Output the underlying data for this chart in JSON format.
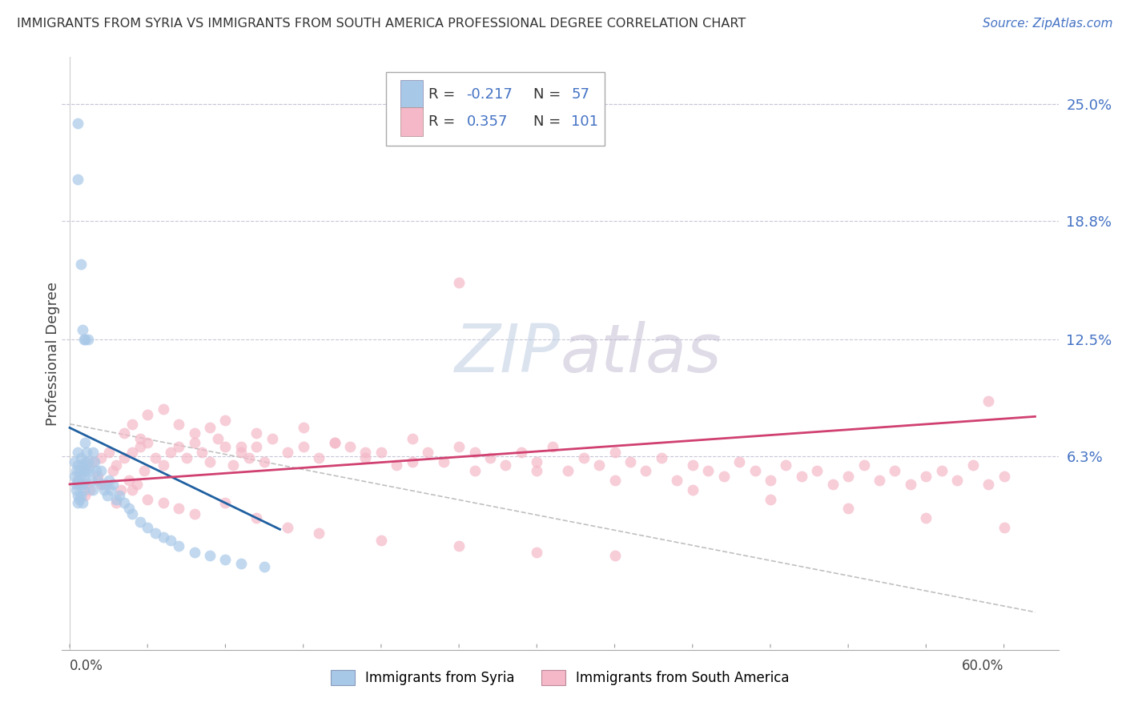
{
  "title": "IMMIGRANTS FROM SYRIA VS IMMIGRANTS FROM SOUTH AMERICA PROFESSIONAL DEGREE CORRELATION CHART",
  "source": "Source: ZipAtlas.com",
  "ylabel": "Professional Degree",
  "ytick_positions": [
    0.063,
    0.125,
    0.188,
    0.25
  ],
  "ytick_labels": [
    "6.3%",
    "12.5%",
    "18.8%",
    "25.0%"
  ],
  "xlim": [
    -0.005,
    0.635
  ],
  "ylim": [
    -0.04,
    0.275
  ],
  "color_syria": "#a8c8e8",
  "color_south_america": "#f4b8c8",
  "color_blue": "#4472c4",
  "color_pink": "#e8527a",
  "color_line_syria": "#2060a0",
  "color_line_sa": "#d04070",
  "background_color": "#ffffff",
  "grid_color": "#c8c8d8",
  "watermark_color": "#d0d8e8",
  "syria_x": [
    0.003,
    0.003,
    0.004,
    0.004,
    0.004,
    0.005,
    0.005,
    0.005,
    0.005,
    0.005,
    0.006,
    0.006,
    0.006,
    0.007,
    0.007,
    0.007,
    0.008,
    0.008,
    0.008,
    0.009,
    0.009,
    0.01,
    0.01,
    0.01,
    0.011,
    0.011,
    0.012,
    0.013,
    0.014,
    0.015,
    0.015,
    0.016,
    0.017,
    0.018,
    0.02,
    0.021,
    0.022,
    0.024,
    0.025,
    0.026,
    0.028,
    0.03,
    0.032,
    0.035,
    0.038,
    0.04,
    0.045,
    0.05,
    0.055,
    0.06,
    0.065,
    0.07,
    0.08,
    0.09,
    0.1,
    0.11,
    0.125
  ],
  "syria_y": [
    0.06,
    0.052,
    0.048,
    0.055,
    0.045,
    0.065,
    0.058,
    0.05,
    0.042,
    0.038,
    0.055,
    0.048,
    0.04,
    0.062,
    0.052,
    0.042,
    0.058,
    0.048,
    0.038,
    0.055,
    0.045,
    0.07,
    0.06,
    0.05,
    0.065,
    0.055,
    0.06,
    0.055,
    0.05,
    0.065,
    0.045,
    0.06,
    0.055,
    0.05,
    0.055,
    0.048,
    0.045,
    0.042,
    0.05,
    0.045,
    0.048,
    0.04,
    0.042,
    0.038,
    0.035,
    0.032,
    0.028,
    0.025,
    0.022,
    0.02,
    0.018,
    0.015,
    0.012,
    0.01,
    0.008,
    0.006,
    0.004
  ],
  "syria_outlier_x": [
    0.005,
    0.005,
    0.007,
    0.008,
    0.009,
    0.01,
    0.012
  ],
  "syria_outlier_y": [
    0.24,
    0.21,
    0.165,
    0.13,
    0.125,
    0.125,
    0.125
  ],
  "south_x": [
    0.005,
    0.007,
    0.009,
    0.011,
    0.013,
    0.015,
    0.018,
    0.02,
    0.023,
    0.025,
    0.028,
    0.03,
    0.033,
    0.035,
    0.038,
    0.04,
    0.043,
    0.045,
    0.048,
    0.05,
    0.055,
    0.06,
    0.065,
    0.07,
    0.075,
    0.08,
    0.085,
    0.09,
    0.095,
    0.1,
    0.105,
    0.11,
    0.115,
    0.12,
    0.125,
    0.13,
    0.14,
    0.15,
    0.16,
    0.17,
    0.18,
    0.19,
    0.2,
    0.21,
    0.22,
    0.23,
    0.24,
    0.25,
    0.26,
    0.27,
    0.28,
    0.29,
    0.3,
    0.31,
    0.32,
    0.33,
    0.34,
    0.35,
    0.36,
    0.37,
    0.38,
    0.39,
    0.4,
    0.41,
    0.42,
    0.43,
    0.44,
    0.45,
    0.46,
    0.47,
    0.48,
    0.49,
    0.5,
    0.51,
    0.52,
    0.53,
    0.54,
    0.55,
    0.56,
    0.57,
    0.58,
    0.59,
    0.6,
    0.01,
    0.02,
    0.03,
    0.04,
    0.05,
    0.06,
    0.07,
    0.08,
    0.1,
    0.12,
    0.14,
    0.16,
    0.2,
    0.25,
    0.3,
    0.35,
    0.59,
    0.25
  ],
  "south_y": [
    0.05,
    0.055,
    0.048,
    0.058,
    0.045,
    0.06,
    0.052,
    0.062,
    0.048,
    0.065,
    0.055,
    0.058,
    0.045,
    0.062,
    0.05,
    0.065,
    0.048,
    0.068,
    0.055,
    0.07,
    0.062,
    0.058,
    0.065,
    0.068,
    0.062,
    0.07,
    0.065,
    0.06,
    0.072,
    0.068,
    0.058,
    0.065,
    0.062,
    0.068,
    0.06,
    0.072,
    0.065,
    0.068,
    0.062,
    0.07,
    0.068,
    0.062,
    0.065,
    0.058,
    0.072,
    0.065,
    0.06,
    0.068,
    0.055,
    0.062,
    0.058,
    0.065,
    0.06,
    0.068,
    0.055,
    0.062,
    0.058,
    0.065,
    0.06,
    0.055,
    0.062,
    0.05,
    0.058,
    0.055,
    0.052,
    0.06,
    0.055,
    0.05,
    0.058,
    0.052,
    0.055,
    0.048,
    0.052,
    0.058,
    0.05,
    0.055,
    0.048,
    0.052,
    0.055,
    0.05,
    0.058,
    0.048,
    0.052,
    0.042,
    0.048,
    0.038,
    0.045,
    0.04,
    0.038,
    0.035,
    0.032,
    0.038,
    0.03,
    0.025,
    0.022,
    0.018,
    0.015,
    0.012,
    0.01,
    0.092,
    0.155
  ],
  "south_extra_x": [
    0.035,
    0.04,
    0.045,
    0.05,
    0.06,
    0.07,
    0.08,
    0.09,
    0.1,
    0.11,
    0.12,
    0.15,
    0.17,
    0.19,
    0.22,
    0.26,
    0.3,
    0.35,
    0.4,
    0.45,
    0.5,
    0.55,
    0.6
  ],
  "south_extra_y": [
    0.075,
    0.08,
    0.072,
    0.085,
    0.088,
    0.08,
    0.075,
    0.078,
    0.082,
    0.068,
    0.075,
    0.078,
    0.07,
    0.065,
    0.06,
    0.065,
    0.055,
    0.05,
    0.045,
    0.04,
    0.035,
    0.03,
    0.025
  ]
}
